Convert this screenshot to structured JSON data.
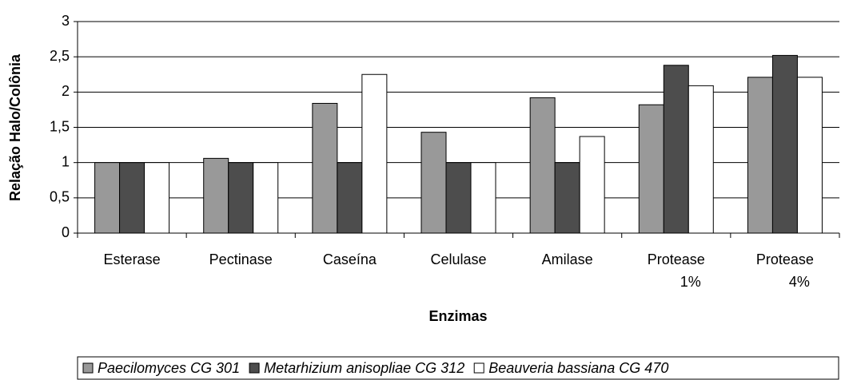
{
  "chart_data": {
    "type": "bar",
    "y_label": "Relação Halo/Colônia",
    "x_label": "Enzimas",
    "categories": [
      "Esterase",
      "Pectinase",
      "Caseína",
      "Celulase",
      "Amilase",
      "Protease 1%",
      "Protease 4%"
    ],
    "series": [
      {
        "name": "Paecilomyces CG 301",
        "color": "#999999",
        "values": [
          1,
          1.06,
          1.84,
          1.43,
          1.92,
          1.82,
          2.21
        ]
      },
      {
        "name": "Metarhizium anisopliae CG 312",
        "color": "#4d4d4d",
        "values": [
          1,
          1,
          1,
          1,
          1,
          2.38,
          2.52
        ]
      },
      {
        "name": "Beauveria bassiana CG 470",
        "color": "#ffffff",
        "values": [
          1,
          1,
          2.25,
          1,
          1.37,
          2.09,
          2.21
        ]
      }
    ],
    "ylim": [
      0,
      3
    ],
    "yticks": [
      0,
      {
        "value": 0.5,
        "label": "0,5"
      },
      1,
      {
        "value": 1.5,
        "label": "1,5"
      },
      2,
      {
        "value": 2.5,
        "label": "2,5"
      },
      3
    ],
    "grid": true,
    "legend": "bottom"
  }
}
